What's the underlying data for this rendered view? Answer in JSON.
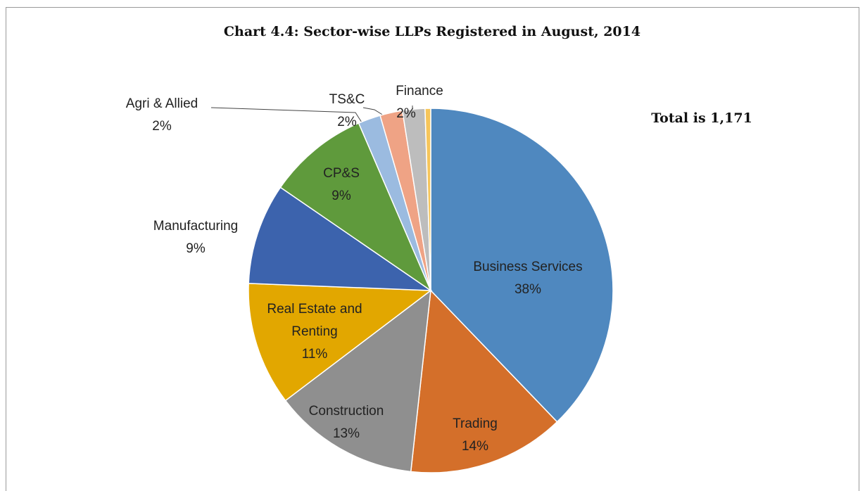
{
  "chart_data": {
    "type": "pie",
    "title": "Chart 4.4: Sector-wise LLPs Registered in August, 2014",
    "annotation": "Total is 1,171",
    "categories": [
      "Business Services",
      "Trading",
      "Construction",
      "Real Estate and Renting",
      "Manufacturing",
      "CP&S",
      "Agri & Allied",
      "TS&C",
      "Finance",
      null
    ],
    "values": [
      38,
      14,
      13,
      11,
      9,
      9,
      2,
      2,
      2,
      0.5
    ],
    "value_labels": [
      "38%",
      "14%",
      "13%",
      "11%",
      "9%",
      "9%",
      "2%",
      "2%",
      "2%",
      null
    ],
    "colors": [
      "#4f88bf",
      "#d46f2a",
      "#8f8f8f",
      "#e2a700",
      "#3c63ad",
      "#5f9a3c",
      "#9bbbe0",
      "#efa385",
      "#bdbdbd",
      "#f6c55a"
    ]
  }
}
